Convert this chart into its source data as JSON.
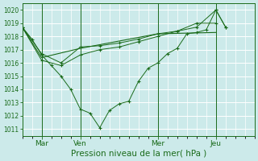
{
  "bg_color": "#cceaea",
  "grid_color": "#ffffff",
  "line_color": "#1a6b1a",
  "ylim": [
    1010.5,
    1020.5
  ],
  "yticks": [
    1011,
    1012,
    1013,
    1014,
    1015,
    1016,
    1017,
    1018,
    1019,
    1020
  ],
  "xlabel": "Pression niveau de la mer( hPa )",
  "xlabel_fontsize": 7.5,
  "xtick_labels": [
    "Mar",
    "Ven",
    "Mer",
    "Jeu"
  ],
  "xtick_positions": [
    24,
    72,
    168,
    240
  ],
  "xlim": [
    0,
    288
  ],
  "day_lines": [
    24,
    72,
    168,
    240
  ],
  "lines": [
    {
      "x": [
        0,
        12,
        24,
        36,
        48,
        60,
        72,
        84,
        96,
        108,
        120,
        132,
        144,
        156,
        168,
        180,
        192,
        204,
        216,
        228,
        240,
        252
      ],
      "y": [
        1018.7,
        1017.8,
        1016.6,
        1015.8,
        1015.0,
        1014.0,
        1012.5,
        1012.2,
        1011.1,
        1012.4,
        1012.9,
        1013.1,
        1014.6,
        1015.6,
        1016.0,
        1016.7,
        1017.1,
        1018.2,
        1018.3,
        1018.5,
        1020.0,
        1018.7
      ],
      "marker": "+"
    },
    {
      "x": [
        0,
        24,
        48,
        72,
        96,
        120,
        144,
        168,
        192,
        216,
        240
      ],
      "y": [
        1018.7,
        1016.7,
        1016.0,
        1017.2,
        1017.3,
        1017.5,
        1017.8,
        1018.2,
        1018.4,
        1019.0,
        1019.0
      ],
      "marker": "+"
    },
    {
      "x": [
        0,
        24,
        48,
        72,
        96,
        120,
        144,
        168,
        192,
        216,
        240,
        252
      ],
      "y": [
        1018.7,
        1016.2,
        1015.8,
        1016.6,
        1017.0,
        1017.2,
        1017.6,
        1018.0,
        1018.4,
        1018.7,
        1020.0,
        1018.7
      ],
      "marker": "+"
    },
    {
      "x": [
        0,
        24,
        72,
        168,
        240
      ],
      "y": [
        1018.7,
        1016.4,
        1017.1,
        1018.2,
        1018.3
      ],
      "marker": null
    }
  ]
}
